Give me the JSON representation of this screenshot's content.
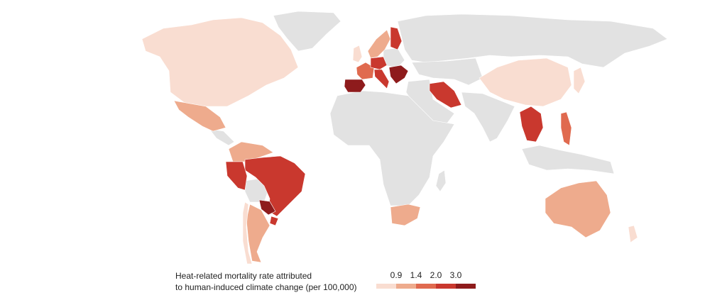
{
  "legend": {
    "title": [
      "Heat-related mortality rate attributed",
      "to human-induced climate change (per 100,000)"
    ],
    "breaks": [
      0.9,
      1.4,
      {
        "value": 2,
        "label": "2.0"
      },
      {
        "value": 3,
        "label": "3.0"
      }
    ],
    "colors": [
      "#f9ddd1",
      "#eeab8d",
      "#e06a4f",
      "#c9382e",
      "#8e1b1c"
    ],
    "no_data_color": "#e2e2e2"
  }
}
